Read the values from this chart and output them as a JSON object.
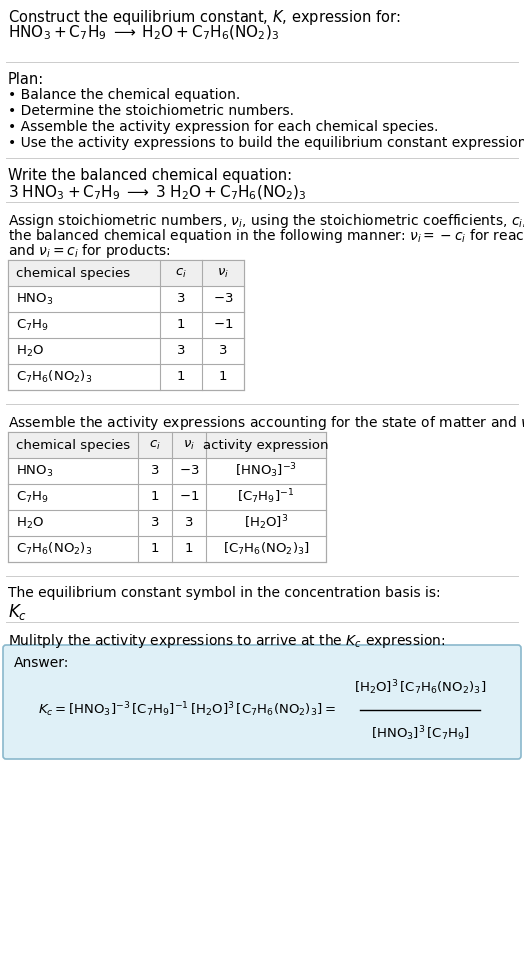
{
  "bg_color": "#ffffff",
  "title_text": "Construct the equilibrium constant, $K$, expression for:",
  "reaction_unbalanced": "$\\mathrm{HNO_3 + C_7H_9 \\;\\longrightarrow\\; H_2O + C_7H_6(NO_2)_3}$",
  "plan_header": "Plan:",
  "plan_items": [
    "• Balance the chemical equation.",
    "• Determine the stoichiometric numbers.",
    "• Assemble the activity expression for each chemical species.",
    "• Use the activity expressions to build the equilibrium constant expression."
  ],
  "balanced_header": "Write the balanced chemical equation:",
  "balanced_eq": "$\\mathrm{3\\;HNO_3 + C_7H_9 \\;\\longrightarrow\\; 3\\;H_2O + C_7H_6(NO_2)_3}$",
  "stoich_intro": "Assign stoichiometric numbers, $\\nu_i$, using the stoichiometric coefficients, $c_i$, from the balanced chemical equation in the following manner: $\\nu_i = -c_i$ for reactants and $\\nu_i = c_i$ for products:",
  "table1_col0": "chemical species",
  "table1_col1": "$c_i$",
  "table1_col2": "$\\nu_i$",
  "table1_rows": [
    [
      "$\\mathrm{HNO_3}$",
      "3",
      "$-3$"
    ],
    [
      "$\\mathrm{C_7H_9}$",
      "1",
      "$-1$"
    ],
    [
      "$\\mathrm{H_2O}$",
      "3",
      "3"
    ],
    [
      "$\\mathrm{C_7H_6(NO_2)_3}$",
      "1",
      "1"
    ]
  ],
  "activity_header": "Assemble the activity expressions accounting for the state of matter and $\\nu_i$:",
  "table2_col0": "chemical species",
  "table2_col1": "$c_i$",
  "table2_col2": "$\\nu_i$",
  "table2_col3": "activity expression",
  "table2_rows": [
    [
      "$\\mathrm{HNO_3}$",
      "3",
      "$-3$",
      "$[\\mathrm{HNO_3}]^{-3}$"
    ],
    [
      "$\\mathrm{C_7H_9}$",
      "1",
      "$-1$",
      "$[\\mathrm{C_7H_9}]^{-1}$"
    ],
    [
      "$\\mathrm{H_2O}$",
      "3",
      "3",
      "$[\\mathrm{H_2O}]^3$"
    ],
    [
      "$\\mathrm{C_7H_6(NO_2)_3}$",
      "1",
      "1",
      "$[\\mathrm{C_7H_6(NO_2)_3}]$"
    ]
  ],
  "kc_header": "The equilibrium constant symbol in the concentration basis is:",
  "kc_symbol": "$K_c$",
  "multiply_header": "Mulitply the activity expressions to arrive at the $K_c$ expression:",
  "answer_label": "Answer:",
  "answer_box_bg": "#dff0f7",
  "answer_box_border": "#8ab8cc",
  "table_header_bg": "#efefef",
  "table_line_color": "#aaaaaa",
  "sep_line_color": "#cccccc"
}
